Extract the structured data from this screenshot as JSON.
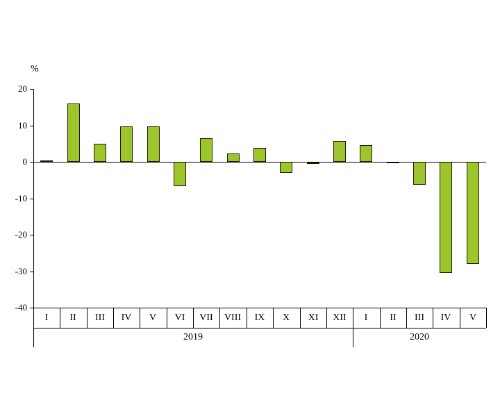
{
  "chart_data": {
    "type": "bar",
    "title": "",
    "ylabel": "%",
    "xlabel": "",
    "ylim": [
      -40,
      20
    ],
    "yticks": [
      20,
      10,
      0,
      -10,
      -20,
      -30,
      -40
    ],
    "grid": false,
    "legend": false,
    "categories": [
      "I",
      "II",
      "III",
      "IV",
      "V",
      "VI",
      "VII",
      "VIII",
      "IX",
      "X",
      "XI",
      "XII",
      "I",
      "II",
      "III",
      "IV",
      "V"
    ],
    "values": [
      0.3,
      16,
      5,
      9.7,
      9.7,
      -6.7,
      6.5,
      2.2,
      3.8,
      -3,
      -0.5,
      5.7,
      4.6,
      -0.2,
      -6.3,
      -30.5,
      -28
    ],
    "year_groups": [
      {
        "label": "2019",
        "start": 0,
        "count": 12
      },
      {
        "label": "2020",
        "start": 12,
        "count": 5
      }
    ],
    "bar_color": "#9dc62d",
    "bar_border_color": "#1c1c00",
    "axis_color": "#000000",
    "text_color": "#000000"
  }
}
